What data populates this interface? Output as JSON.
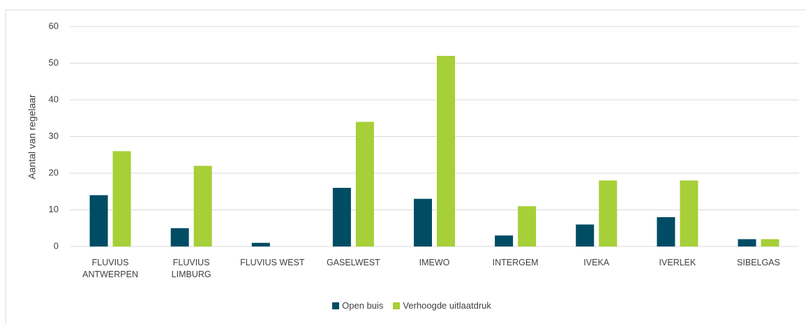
{
  "chart_data": {
    "type": "bar",
    "y_label": "Aantal van regelaar",
    "categories": [
      "FLUVIUS ANTWERPEN",
      "FLUVIUS LIMBURG",
      "FLUVIUS WEST",
      "GASELWEST",
      "IMEWO",
      "INTERGEM",
      "IVEKA",
      "IVERLEK",
      "SIBELGAS"
    ],
    "series": [
      {
        "name": "Open buis",
        "color": "#004c64",
        "values": [
          14,
          5,
          1,
          16,
          13,
          3,
          6,
          8,
          2
        ]
      },
      {
        "name": "Verhoogde uitlaatdruk",
        "color": "#a6cf38",
        "values": [
          26,
          22,
          0,
          34,
          52,
          11,
          18,
          18,
          2
        ]
      }
    ],
    "ylim": [
      0,
      60
    ],
    "yticks": [
      0,
      10,
      20,
      30,
      40,
      50,
      60
    ],
    "grid": true,
    "legend": "bottom"
  }
}
